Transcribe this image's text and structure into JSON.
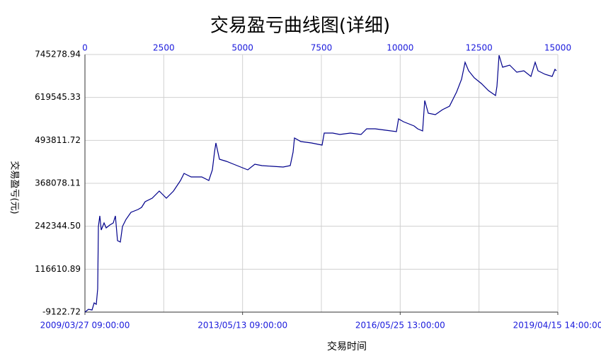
{
  "chart_data": {
    "type": "line",
    "title": "交易盈亏曲线图(详细)",
    "y_label": "交易盈亏(元)",
    "x_label": "交易时间",
    "xlim": [
      0,
      15000
    ],
    "xticks": [
      0,
      2500,
      5000,
      7500,
      10000,
      12500,
      15000
    ],
    "bottom_xticks": [
      {
        "value": 0,
        "label": "2009/03/27 09:00:00"
      },
      {
        "value": 5000,
        "label": "2013/05/13 09:00:00"
      },
      {
        "value": 10000,
        "label": "2016/05/25 13:00:00"
      },
      {
        "value": 15000,
        "label": "2019/04/15 14:00:00"
      }
    ],
    "ylim": [
      -9122.72,
      745278.94
    ],
    "yticks": [
      -9122.72,
      116610.89,
      {
        "value": 242344.5,
        "label": "242344.50"
      },
      368078.11,
      493811.72,
      619545.33,
      745278.94
    ],
    "grid": true,
    "series": [
      {
        "color": "#00008b",
        "x": [
          0,
          112,
          225,
          292,
          359,
          404,
          427,
          472,
          516,
          606,
          674,
          786,
          898,
          966,
          1033,
          1123,
          1190,
          1302,
          1460,
          1684,
          1796,
          1909,
          2133,
          2358,
          2470,
          2582,
          2807,
          3031,
          3144,
          3368,
          3705,
          3930,
          4042,
          4109,
          4154,
          4266,
          4491,
          4716,
          5052,
          5165,
          5389,
          5614,
          5951,
          6287,
          6512,
          6602,
          6647,
          6849,
          7186,
          7522,
          7590,
          7859,
          8084,
          8421,
          8757,
          8937,
          9207,
          9543,
          9880,
          9948,
          10105,
          10442,
          10554,
          10711,
          10778,
          10891,
          11115,
          11340,
          11565,
          11789,
          11946,
          12058,
          12171,
          12350,
          12575,
          12799,
          13024,
          13069,
          13136,
          13248,
          13473,
          13698,
          13922,
          14147,
          14281,
          14371,
          14596,
          14820,
          14910,
          14955
        ],
        "values": [
          -9123,
          -833,
          -2905,
          17820,
          13675,
          59270,
          241650,
          272740,
          231290,
          252015,
          237510,
          245800,
          252015,
          272740,
          200200,
          196050,
          241650,
          262380,
          283100,
          291400,
          297600,
          314200,
          324550,
          345280,
          334920,
          324550,
          345280,
          376360,
          397100,
          386730,
          386730,
          376360,
          407430,
          459250,
          486190,
          438520,
          432300,
          424010,
          411580,
          407430,
          424010,
          419870,
          417800,
          415730,
          419870,
          459250,
          500720,
          490380,
          486190,
          479980,
          515220,
          515220,
          511070,
          515220,
          511070,
          527650,
          527650,
          523500,
          519350,
          556660,
          548370,
          535930,
          527650,
          521430,
          610550,
          573250,
          569100,
          583600,
          593960,
          635410,
          672720,
          722460,
          697590,
          676870,
          660290,
          639560,
          625050,
          652000,
          743190,
          707960,
          714180,
          693450,
          697590,
          681010,
          722460,
          697590,
          687240,
          681010,
          701730,
          697590
        ]
      }
    ]
  }
}
